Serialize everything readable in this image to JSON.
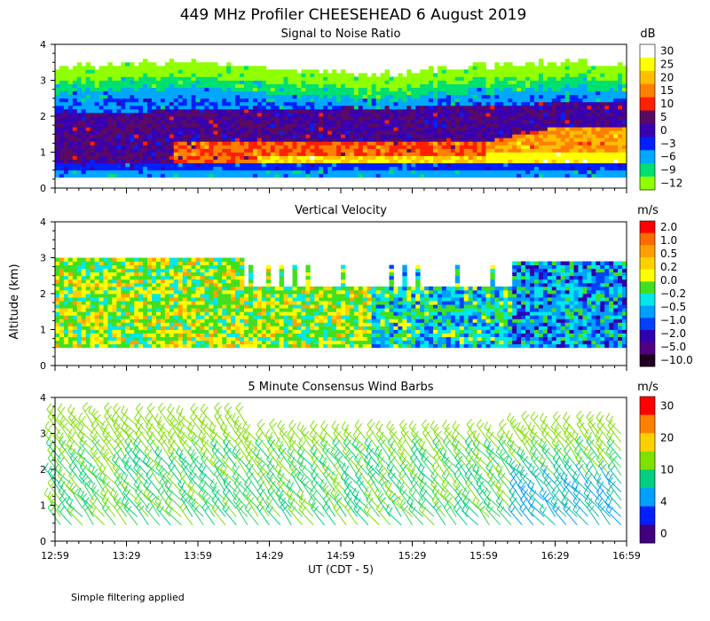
{
  "title": "449 MHz Profiler CHEESEHEAD  6 August 2019",
  "ylabel": "Altitude (km)",
  "xlabel": "UT  (CDT - 5)",
  "footnote": "Simple filtering applied",
  "time_ticks": [
    "12:59",
    "13:29",
    "13:59",
    "14:29",
    "14:59",
    "15:29",
    "15:59",
    "16:29",
    "16:59"
  ],
  "chart_data": [
    {
      "type": "heatmap",
      "title": "Signal to Noise Ratio",
      "y_ticks": [
        "0",
        "1",
        "2",
        "3",
        "4"
      ],
      "ylim": [
        0,
        4
      ],
      "colorbar_unit": "dB",
      "colorbar_labels": [
        "30",
        "25",
        "20",
        "15",
        "10",
        "5",
        "0",
        "−3",
        "−6",
        "−9",
        "−12"
      ],
      "colorbar_colors": [
        "#ffffff",
        "#ffff00",
        "#ffbf00",
        "#ff7f00",
        "#ff2000",
        "#5a0a64",
        "#3a00b0",
        "#0020ff",
        "#00a8ff",
        "#00e070",
        "#90ff00"
      ]
    },
    {
      "type": "heatmap",
      "title": "Vertical Velocity",
      "y_ticks": [
        "0",
        "1",
        "2",
        "3",
        "4"
      ],
      "ylim": [
        0,
        4
      ],
      "colorbar_unit": "m/s",
      "colorbar_labels": [
        "2.0",
        "1.0",
        "0.5",
        "0.2",
        "0.0",
        "−0.2",
        "−0.5",
        "−1.0",
        "−2.0",
        "−5.0",
        "−10.0"
      ],
      "colorbar_colors": [
        "#ff0000",
        "#ff6a00",
        "#ffa000",
        "#ffd000",
        "#ffff00",
        "#40e020",
        "#00e8e8",
        "#00a0ff",
        "#0040ff",
        "#3000b0",
        "#500080",
        "#200020"
      ]
    },
    {
      "type": "scatter",
      "title": "5 Minute Consensus Wind Barbs",
      "y_ticks": [
        "0",
        "1",
        "2",
        "3",
        "4"
      ],
      "ylim": [
        0,
        4
      ],
      "colorbar_unit": "m/s",
      "colorbar_labels": [
        "30",
        "20",
        "10",
        "4",
        "0"
      ],
      "colorbar_colors": [
        "#ff0000",
        "#ff8000",
        "#ffd000",
        "#80e000",
        "#00d080",
        "#00a0ff",
        "#0020ff",
        "#400080"
      ]
    }
  ]
}
